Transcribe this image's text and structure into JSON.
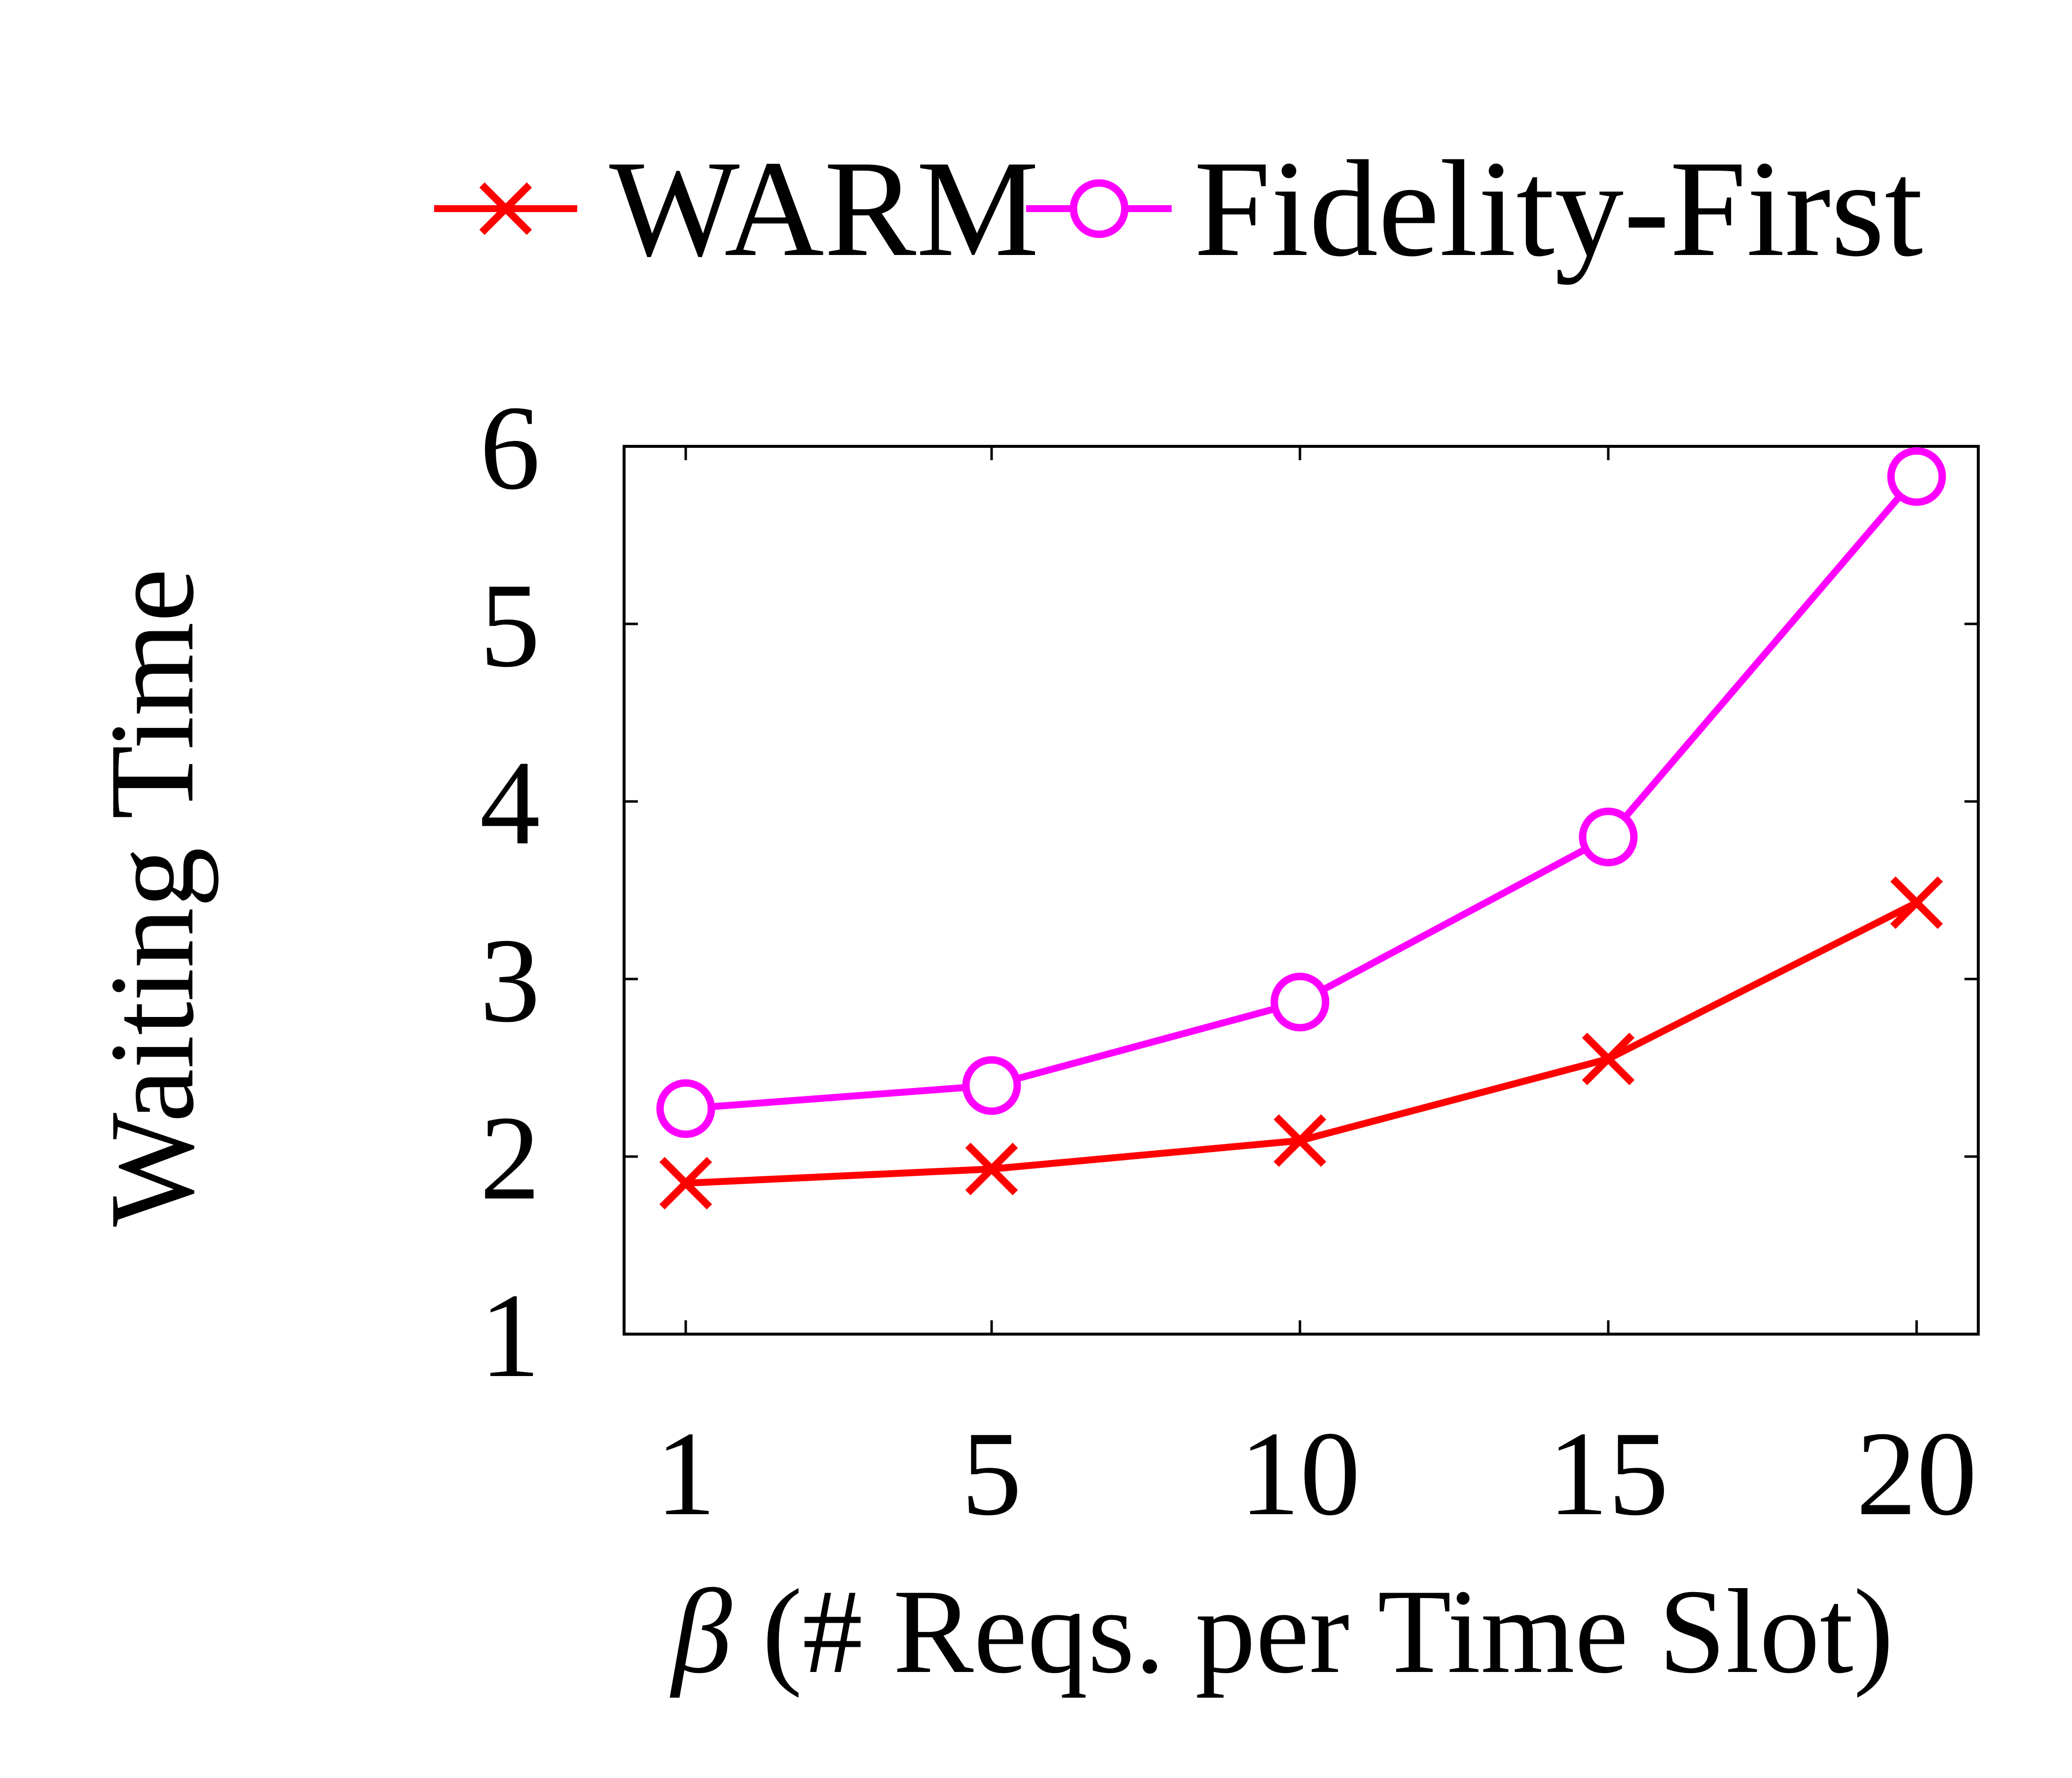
{
  "chart_data": {
    "type": "line",
    "title": "",
    "xlabel": "β (# Reqs. per Time Slot)",
    "xlabel_symbol": "β",
    "xlabel_rest": " (# Reqs. per Time Slot)",
    "ylabel": "Waiting Time",
    "x": [
      1,
      5,
      10,
      15,
      20
    ],
    "xtick_labels": [
      "1",
      "5",
      "10",
      "15",
      "20"
    ],
    "yticks": [
      1,
      2,
      3,
      4,
      5,
      6
    ],
    "ytick_labels": [
      "1",
      "2",
      "3",
      "4",
      "5",
      "6"
    ],
    "xlim": [
      0,
      21
    ],
    "ylim": [
      1,
      6
    ],
    "grid": false,
    "legend_position": "top",
    "series": [
      {
        "name": "WARM",
        "marker": "x",
        "color": "#ff0000",
        "values": [
          1.85,
          1.93,
          2.09,
          2.55,
          3.43
        ]
      },
      {
        "name": "Fidelity-First",
        "marker": "circle",
        "color": "#ff00ff",
        "values": [
          2.27,
          2.4,
          2.87,
          3.8,
          5.83
        ]
      }
    ]
  }
}
